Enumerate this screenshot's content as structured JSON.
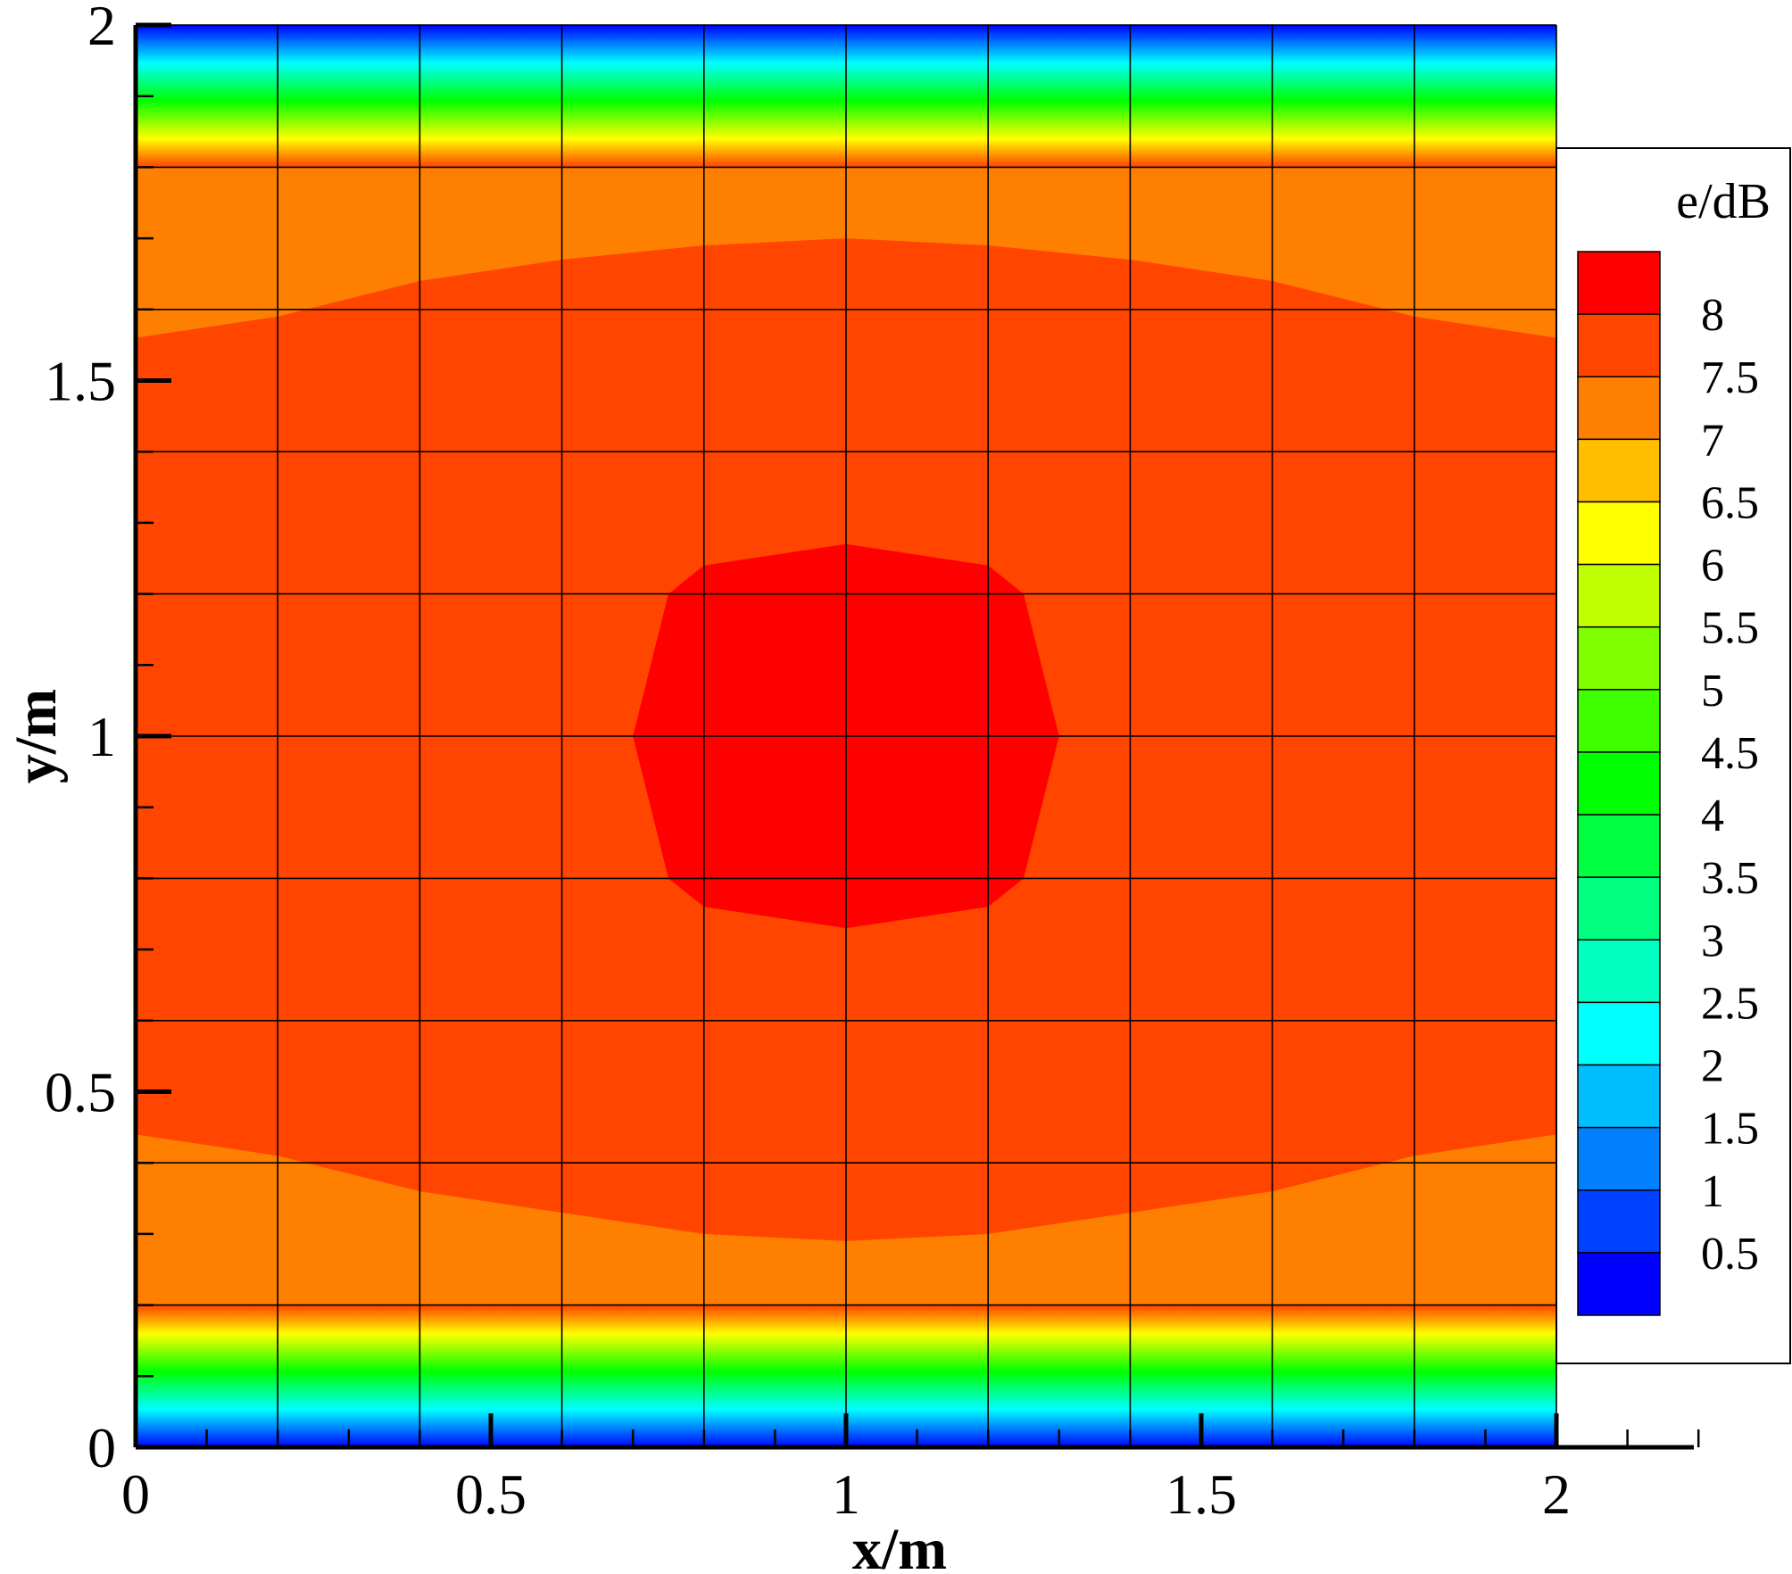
{
  "chart_data": {
    "type": "heatmap",
    "title": "",
    "xlabel": "x/m",
    "ylabel": "y/m",
    "xlim": [
      0,
      2
    ],
    "ylim": [
      0,
      2
    ],
    "x_ticks": [
      "0",
      "0.5",
      "1",
      "1.5",
      "2"
    ],
    "y_ticks": [
      "0",
      "0.5",
      "1",
      "1.5",
      "2"
    ],
    "grid": true,
    "grid_spacing": 0.2,
    "legend": {
      "title": "e/dB",
      "placement": "right",
      "levels": [
        "8",
        "7.5",
        "7",
        "6.5",
        "6",
        "5.5",
        "5",
        "4.5",
        "4",
        "3.5",
        "3",
        "2.5",
        "2",
        "1.5",
        "1",
        "0.5"
      ],
      "colors": [
        "#ff0000",
        "#ff4500",
        "#ff7f00",
        "#ffbf00",
        "#ffff00",
        "#c0ff00",
        "#80ff00",
        "#40ff00",
        "#00ff00",
        "#00ff40",
        "#00ff80",
        "#00ffc0",
        "#00ffff",
        "#00bfff",
        "#0080ff",
        "#0040ff",
        "#0000ff"
      ]
    },
    "field": {
      "description_levels_dB": {
        "edges_y_0_and_2": 0.5,
        "band_y_0.2_and_1.8": 7,
        "main_region": 7.5,
        "center_peak_near_x1_y1": 8
      },
      "bands": [
        {
          "y_range": [
            0.0,
            0.2
          ],
          "min_level": 0.5,
          "max_level": 6.5
        },
        {
          "y_range": [
            1.8,
            2.0
          ],
          "min_level": 0.5,
          "max_level": 6.5
        }
      ],
      "contour_7_5_upper": [
        [
          0,
          1.56
        ],
        [
          0.2,
          1.59
        ],
        [
          0.4,
          1.64
        ],
        [
          0.6,
          1.67
        ],
        [
          0.8,
          1.69
        ],
        [
          1.0,
          1.7
        ],
        [
          1.2,
          1.69
        ],
        [
          1.4,
          1.67
        ],
        [
          1.6,
          1.64
        ],
        [
          1.8,
          1.59
        ],
        [
          2.0,
          1.56
        ]
      ],
      "contour_7_5_lower": [
        [
          0,
          0.44
        ],
        [
          0.2,
          0.41
        ],
        [
          0.4,
          0.36
        ],
        [
          0.6,
          0.33
        ],
        [
          0.8,
          0.3
        ],
        [
          1.0,
          0.29
        ],
        [
          1.2,
          0.3
        ],
        [
          1.4,
          0.33
        ],
        [
          1.6,
          0.36
        ],
        [
          1.8,
          0.41
        ],
        [
          2.0,
          0.44
        ]
      ],
      "contour_8_peak": [
        [
          1.0,
          1.27
        ],
        [
          1.2,
          1.24
        ],
        [
          1.25,
          1.2
        ],
        [
          1.3,
          1.0
        ],
        [
          1.25,
          0.8
        ],
        [
          1.2,
          0.76
        ],
        [
          1.0,
          0.73
        ],
        [
          0.8,
          0.76
        ],
        [
          0.75,
          0.8
        ],
        [
          0.7,
          1.0
        ],
        [
          0.75,
          1.2
        ],
        [
          0.8,
          1.24
        ]
      ]
    }
  }
}
